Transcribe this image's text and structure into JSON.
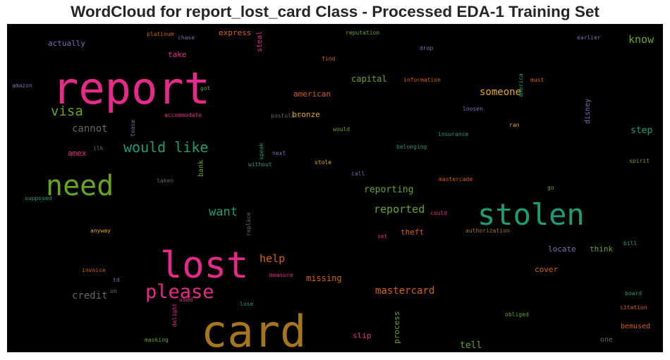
{
  "chart_data": {
    "type": "wordcloud",
    "title": "WordCloud for report_lost_card Class - Processed EDA-1 Training Set",
    "background": "#000000",
    "words": [
      {
        "text": "report",
        "color": "#e7298a",
        "size": 62
      },
      {
        "text": "card",
        "color": "#a6761d",
        "size": 62
      },
      {
        "text": "lost",
        "color": "#e7298a",
        "size": 52
      },
      {
        "text": "stolen",
        "color": "#1b9e77",
        "size": 42
      },
      {
        "text": "need",
        "color": "#66a61e",
        "size": 40
      },
      {
        "text": "please",
        "color": "#e7298a",
        "size": 27
      },
      {
        "text": "would like",
        "color": "#1b9e77",
        "size": 20
      },
      {
        "text": "visa",
        "color": "#66a61e",
        "size": 19
      },
      {
        "text": "want",
        "color": "#1b9e77",
        "size": 17
      },
      {
        "text": "reported",
        "color": "#66a61e",
        "size": 15
      },
      {
        "text": "help",
        "color": "#d95f02",
        "size": 15
      },
      {
        "text": "know",
        "color": "#66a61e",
        "size": 15
      },
      {
        "text": "mastercard",
        "color": "#d95f02",
        "size": 14
      },
      {
        "text": "someone",
        "color": "#e6ab02",
        "size": 14
      },
      {
        "text": "cannot",
        "color": "#666666",
        "size": 14
      },
      {
        "text": "credit",
        "color": "#666666",
        "size": 14
      },
      {
        "text": "reporting",
        "color": "#66a61e",
        "size": 13
      },
      {
        "text": "step",
        "color": "#1b9e77",
        "size": 13
      },
      {
        "text": "tell",
        "color": "#66a61e",
        "size": 13
      },
      {
        "text": "process",
        "color": "#66a61e",
        "size": 11
      },
      {
        "text": "missing",
        "color": "#d95f02",
        "size": 12
      },
      {
        "text": "capital",
        "color": "#66a61e",
        "size": 12
      },
      {
        "text": "express",
        "color": "#d95f02",
        "size": 11
      },
      {
        "text": "american",
        "color": "#d95f02",
        "size": 11
      },
      {
        "text": "bronze",
        "color": "#e6ab02",
        "size": 11
      },
      {
        "text": "theft",
        "color": "#d95f02",
        "size": 11
      },
      {
        "text": "amex",
        "color": "#e7298a",
        "size": 11
      },
      {
        "text": "actually",
        "color": "#7570b3",
        "size": 11
      },
      {
        "text": "take",
        "color": "#e7298a",
        "size": 11
      },
      {
        "text": "cover",
        "color": "#d95f02",
        "size": 11
      },
      {
        "text": "think",
        "color": "#66a61e",
        "size": 11
      },
      {
        "text": "locate",
        "color": "#7570b3",
        "size": 11
      },
      {
        "text": "slip",
        "color": "#e7298a",
        "size": 11
      },
      {
        "text": "bemused",
        "color": "#d95f02",
        "size": 10
      },
      {
        "text": "one",
        "color": "#666666",
        "size": 10
      },
      {
        "text": "disney",
        "color": "#7570b3",
        "size": 10
      },
      {
        "text": "bank",
        "color": "#66a61e",
        "size": 10
      },
      {
        "text": "steal",
        "color": "#e7298a",
        "size": 10
      },
      {
        "text": "lose",
        "color": "#1b9e77",
        "size": 8
      },
      {
        "text": "platinum",
        "color": "#d95f02",
        "size": 8
      },
      {
        "text": "chase",
        "color": "#7570b3",
        "size": 8
      },
      {
        "text": "reputation",
        "color": "#66a61e",
        "size": 8
      },
      {
        "text": "earlier",
        "color": "#7570b3",
        "size": 8
      },
      {
        "text": "drop",
        "color": "#7570b3",
        "size": 8
      },
      {
        "text": "find",
        "color": "#d95f02",
        "size": 8
      },
      {
        "text": "america",
        "color": "#1b9e77",
        "size": 8
      },
      {
        "text": "amazon",
        "color": "#7570b3",
        "size": 8
      },
      {
        "text": "got",
        "color": "#66a61e",
        "size": 8
      },
      {
        "text": "information",
        "color": "#d95f02",
        "size": 8
      },
      {
        "text": "must",
        "color": "#d95f02",
        "size": 8
      },
      {
        "text": "loosen",
        "color": "#7570b3",
        "size": 8
      },
      {
        "text": "accommodate",
        "color": "#e7298a",
        "size": 8
      },
      {
        "text": "tease",
        "color": "#7570b3",
        "size": 8
      },
      {
        "text": "postulate",
        "color": "#666666",
        "size": 8
      },
      {
        "text": "would",
        "color": "#66a61e",
        "size": 8
      },
      {
        "text": "ran",
        "color": "#e6ab02",
        "size": 8
      },
      {
        "text": "insurance",
        "color": "#1b9e77",
        "size": 8
      },
      {
        "text": "ilk",
        "color": "#666666",
        "size": 8
      },
      {
        "text": "speak",
        "color": "#1b9e77",
        "size": 8
      },
      {
        "text": "next",
        "color": "#7570b3",
        "size": 8
      },
      {
        "text": "belonging",
        "color": "#1b9e77",
        "size": 8
      },
      {
        "text": "without",
        "color": "#1b9e77",
        "size": 8
      },
      {
        "text": "stole",
        "color": "#e6ab02",
        "size": 8
      },
      {
        "text": "spirit",
        "color": "#66a61e",
        "size": 8
      },
      {
        "text": "taken",
        "color": "#666666",
        "size": 8
      },
      {
        "text": "call",
        "color": "#7570b3",
        "size": 8
      },
      {
        "text": "mastercade",
        "color": "#d95f02",
        "size": 8
      },
      {
        "text": "go",
        "color": "#66a61e",
        "size": 8
      },
      {
        "text": "supposed",
        "color": "#1b9e77",
        "size": 8
      },
      {
        "text": "could",
        "color": "#e7298a",
        "size": 8
      },
      {
        "text": "anyway",
        "color": "#e6ab02",
        "size": 8
      },
      {
        "text": "replace",
        "color": "#666666",
        "size": 8
      },
      {
        "text": "set",
        "color": "#e7298a",
        "size": 8
      },
      {
        "text": "authorization",
        "color": "#a6761d",
        "size": 8
      },
      {
        "text": "bill",
        "color": "#1b9e77",
        "size": 8
      },
      {
        "text": "invoice",
        "color": "#d95f02",
        "size": 8
      },
      {
        "text": "measure",
        "color": "#e7298a",
        "size": 8
      },
      {
        "text": "td",
        "color": "#7570b3",
        "size": 8
      },
      {
        "text": "oh",
        "color": "#666666",
        "size": 8
      },
      {
        "text": "board",
        "color": "#1b9e77",
        "size": 8
      },
      {
        "text": "used",
        "color": "#e7298a",
        "size": 8
      },
      {
        "text": "delight",
        "color": "#e7298a",
        "size": 8
      },
      {
        "text": "obliged",
        "color": "#66a61e",
        "size": 8
      },
      {
        "text": "citation",
        "color": "#d95f02",
        "size": 8
      },
      {
        "text": "masking",
        "color": "#66a61e",
        "size": 8
      }
    ]
  }
}
